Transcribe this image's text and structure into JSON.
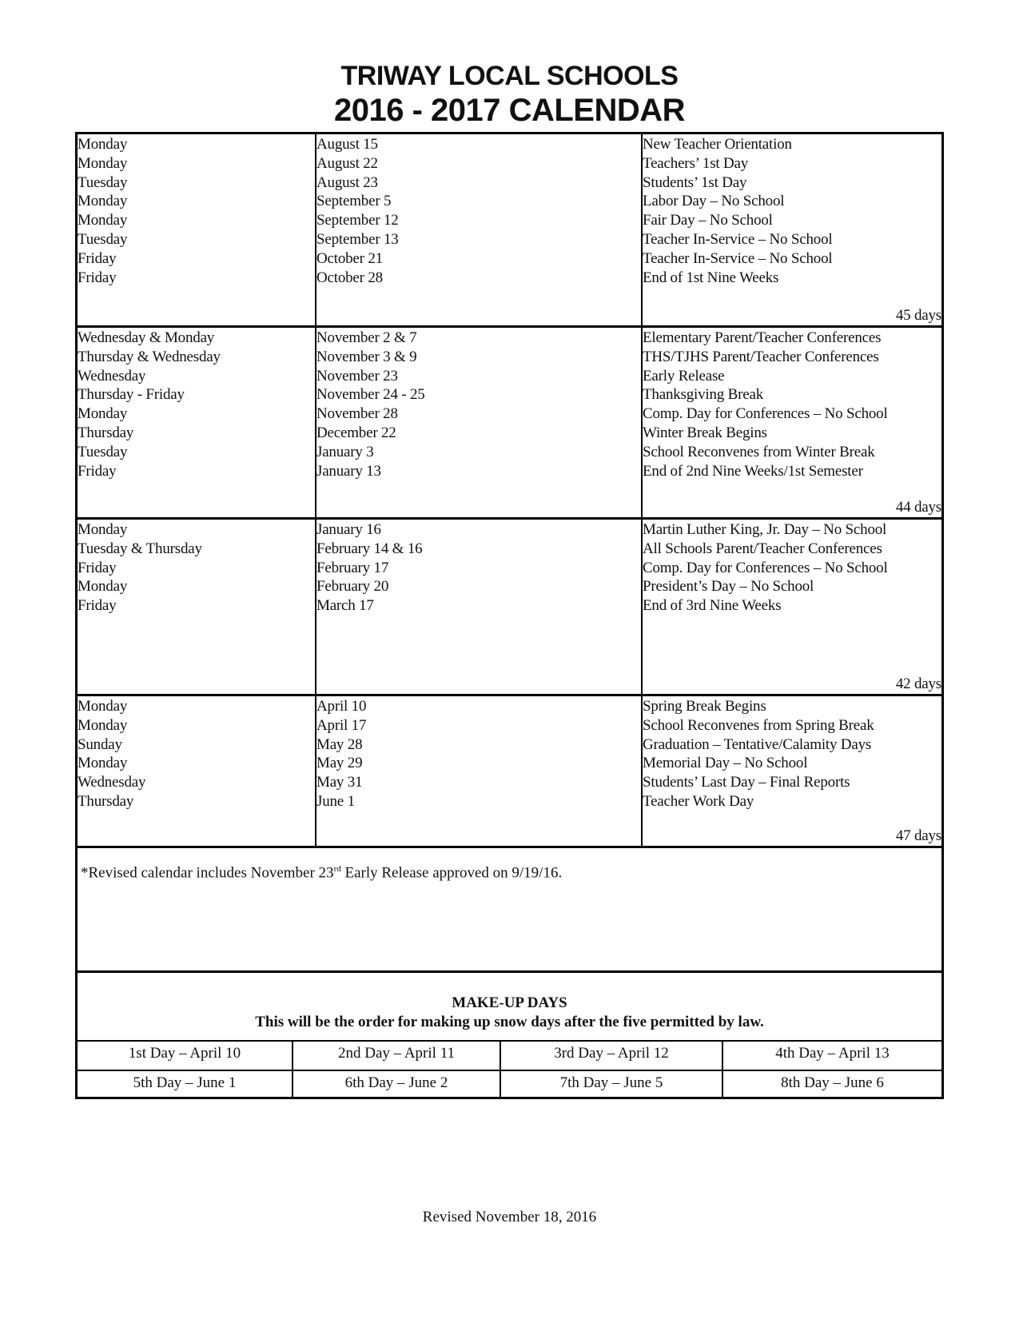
{
  "header": {
    "title": "TRIWAY LOCAL SCHOOLS",
    "subtitle": "2016 - 2017 CALENDAR"
  },
  "sections": [
    {
      "days": [
        "Monday",
        "Monday",
        "Tuesday",
        "Monday",
        "Monday",
        "Tuesday",
        "Friday",
        "Friday"
      ],
      "dates": [
        "August 15",
        "August 22",
        "August 23",
        "September 5",
        "September 12",
        "September 13",
        "October 21",
        "October 28"
      ],
      "events": [
        "New Teacher Orientation",
        "Teachers’ 1st Day",
        "Students’ 1st Day",
        "Labor Day – No School",
        "Fair Day – No School",
        "Teacher In-Service – No School",
        "Teacher In-Service – No School",
        "End of 1st Nine Weeks"
      ],
      "total": "45 days"
    },
    {
      "days": [
        "Wednesday & Monday",
        "Thursday & Wednesday",
        "Wednesday",
        "Thursday - Friday",
        "Monday",
        "Thursday",
        "Tuesday",
        "Friday"
      ],
      "dates": [
        "November 2 & 7",
        "November 3 & 9",
        "November 23",
        "November 24 - 25",
        "November 28",
        "December 22",
        "January 3",
        "January 13"
      ],
      "events": [
        "Elementary Parent/Teacher Conferences",
        "THS/TJHS Parent/Teacher Conferences",
        "Early Release",
        "Thanksgiving Break",
        "Comp. Day for Conferences – No School",
        "Winter Break Begins",
        "School Reconvenes from Winter Break",
        "End of 2nd Nine Weeks/1st Semester"
      ],
      "total": "44 days"
    },
    {
      "days": [
        "Monday",
        "Tuesday & Thursday",
        "Friday",
        "Monday",
        "Friday"
      ],
      "dates": [
        "January 16",
        "February 14 & 16",
        "February 17",
        "February 20",
        "March 17"
      ],
      "events": [
        "Martin Luther King, Jr. Day – No School",
        "All Schools Parent/Teacher Conferences",
        "Comp. Day for Conferences – No School",
        "President’s Day – No School",
        "End of 3rd Nine Weeks"
      ],
      "total": "42 days"
    },
    {
      "days": [
        "Monday",
        "Monday",
        "Sunday",
        "Monday",
        "Wednesday",
        "Thursday"
      ],
      "dates": [
        "April 10",
        "April 17",
        "May 28",
        "May 29",
        "May 31",
        "June 1"
      ],
      "events": [
        "Spring Break Begins",
        "School Reconvenes from Spring Break",
        "Graduation – Tentative/Calamity Days",
        "Memorial Day – No School",
        "Students’ Last Day – Final Reports",
        "Teacher Work Day"
      ],
      "total": "47 days"
    }
  ],
  "note": {
    "before": "*Revised calendar includes November 23",
    "sup": "rd",
    "after": " Early Release approved on 9/19/16."
  },
  "makeup": {
    "title": "MAKE-UP DAYS",
    "subtitle": "This will be the order for making up snow days after the five permitted by law.",
    "rows": [
      [
        "1st Day – April 10",
        "2nd Day – April 11",
        "3rd Day – April 12",
        "4th Day – April 13"
      ],
      [
        "5th Day – June 1",
        "6th Day – June 2",
        "7th Day – June 5",
        "8th Day – June 6"
      ]
    ]
  },
  "footer": "Revised November 18, 2016"
}
